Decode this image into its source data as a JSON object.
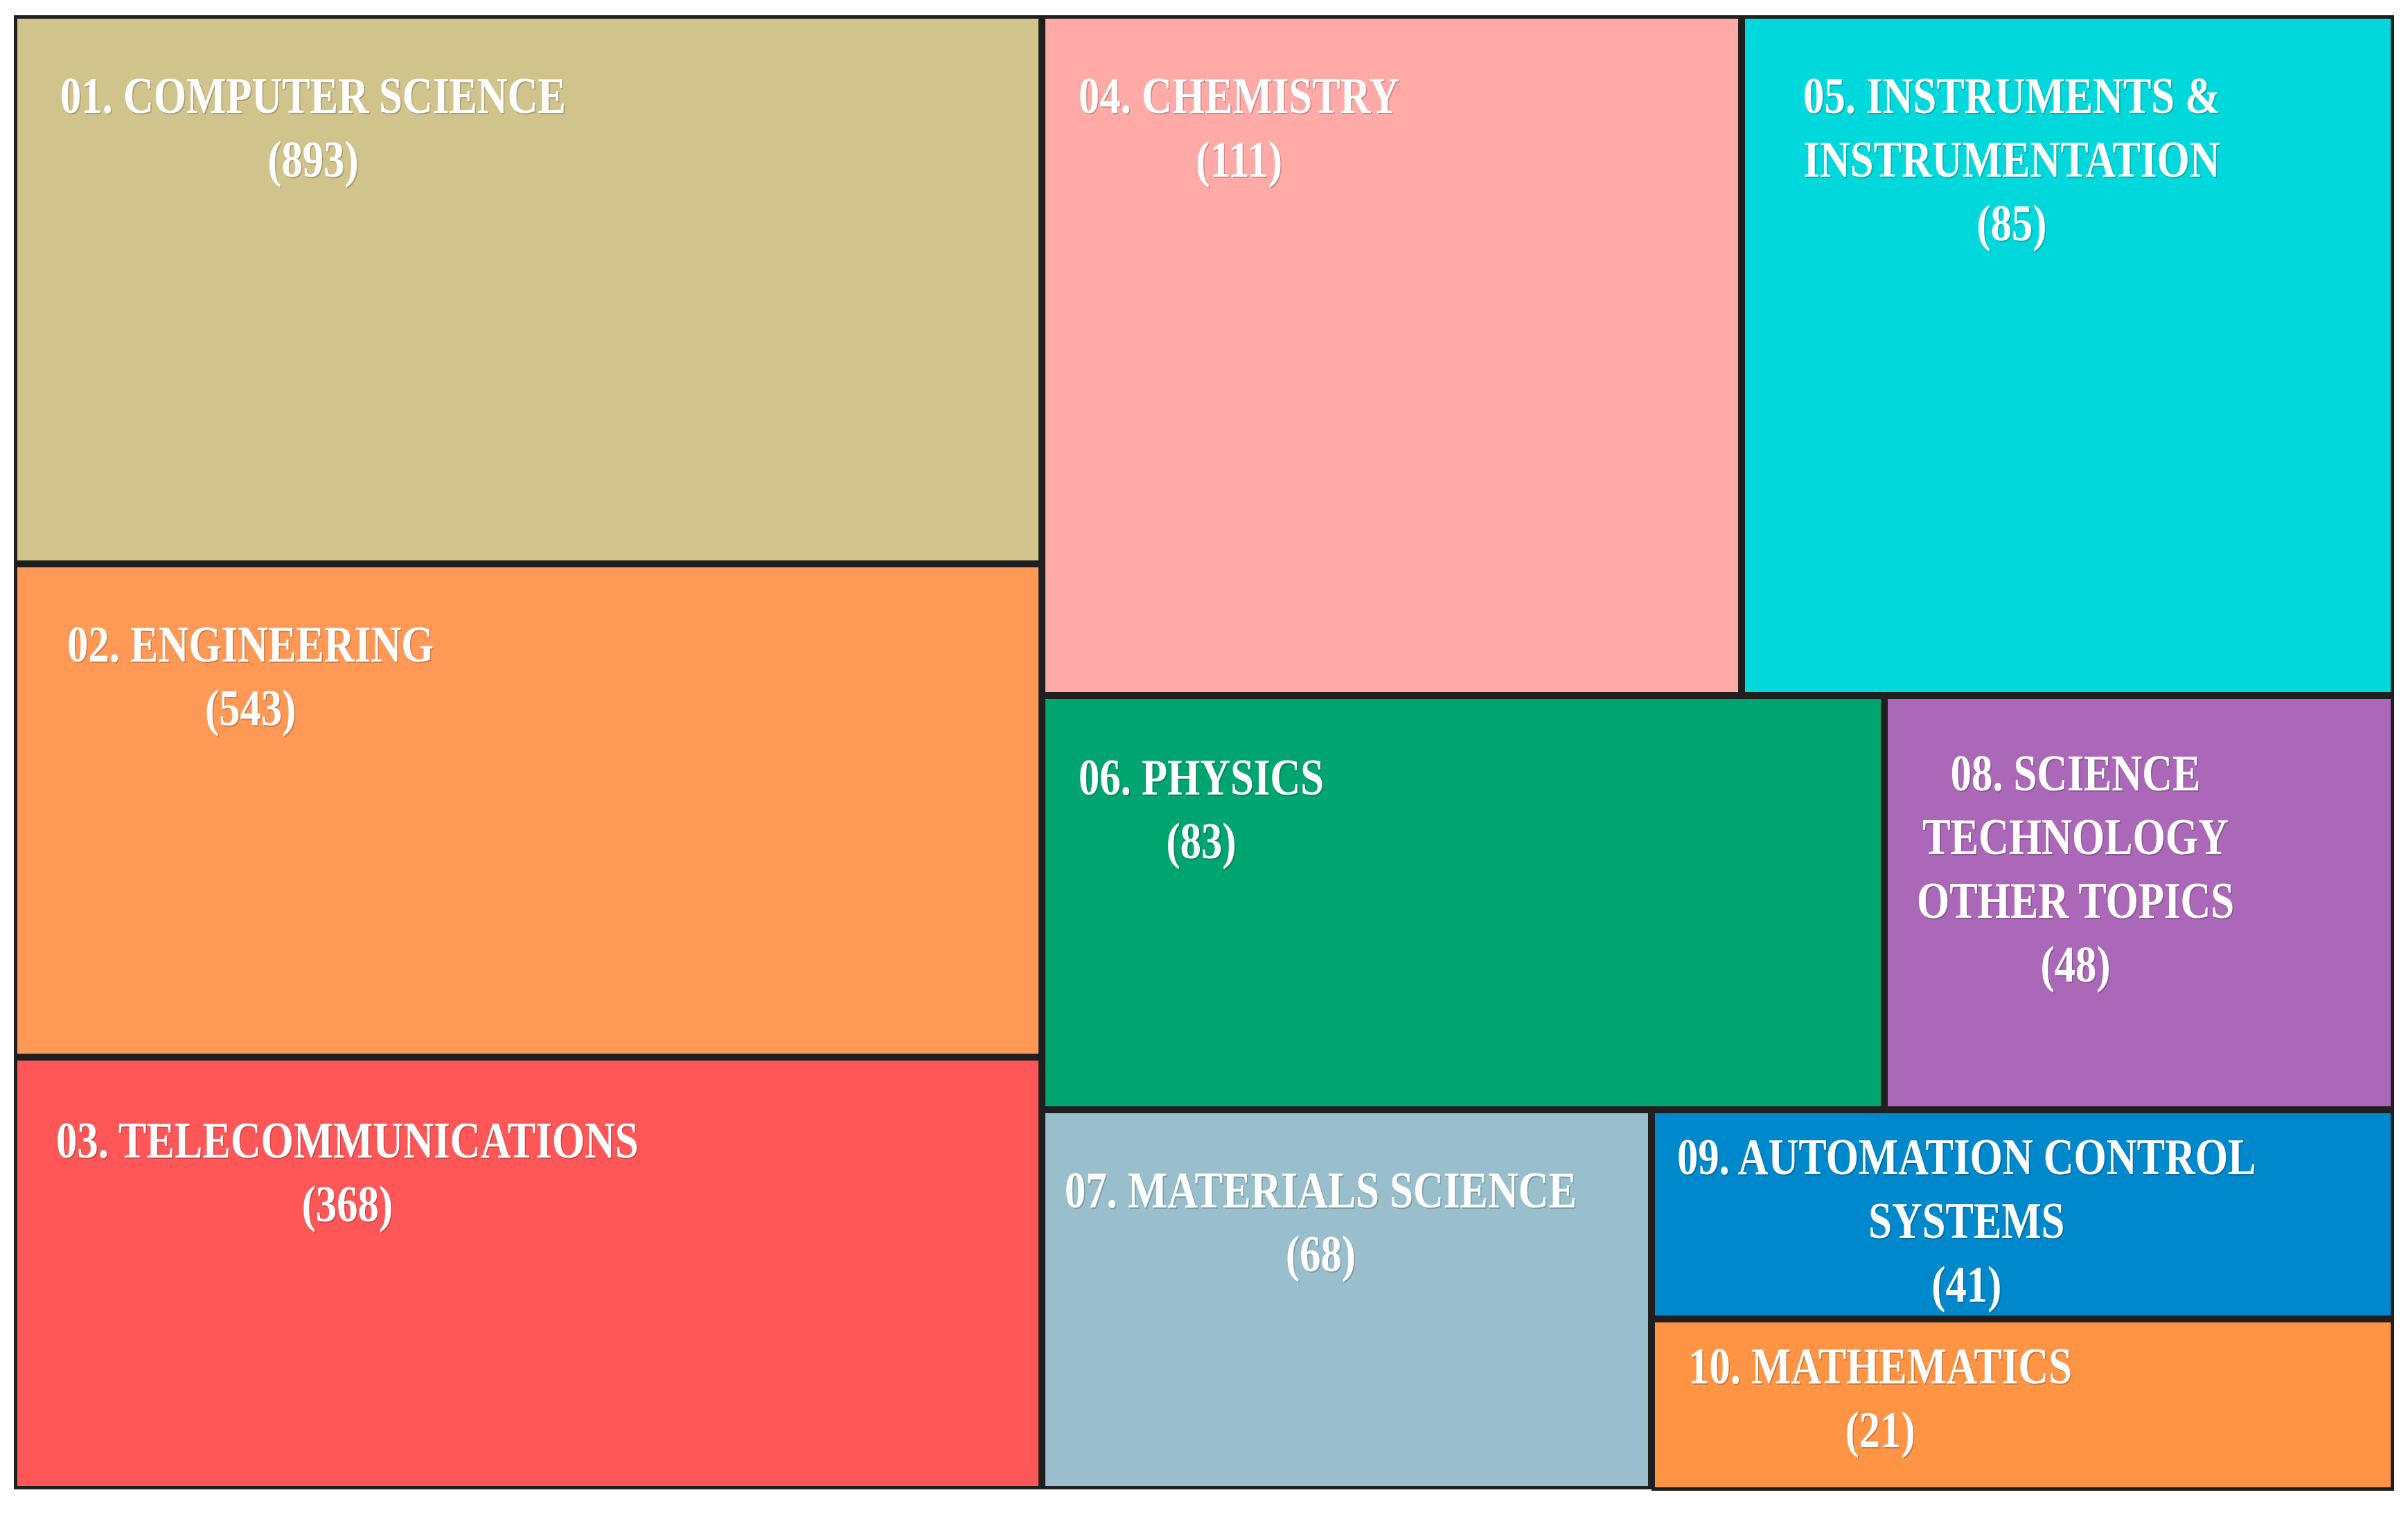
{
  "chart_data": {
    "type": "treemap",
    "title": "",
    "items": [
      {
        "name": "01. COMPUTER SCIENCE",
        "value": 893,
        "value_label": "(893)",
        "color": "#d0c48c"
      },
      {
        "name": "02. ENGINEERING",
        "value": 543,
        "value_label": "(543)",
        "color": "#ff9955"
      },
      {
        "name": "03. TELECOMMUNICATIONS",
        "value": 368,
        "value_label": "(368)",
        "color": "#ff5757"
      },
      {
        "name": "04. CHEMISTRY",
        "value": 111,
        "value_label": "(111)",
        "color": "#ffaaa6"
      },
      {
        "name": "05. INSTRUMENTS & INSTRUMENTATION",
        "lines": [
          "05. INSTRUMENTS &",
          "INSTRUMENTATION"
        ],
        "value": 85,
        "value_label": "(85)",
        "color": "#00d8dc"
      },
      {
        "name": "06. PHYSICS",
        "value": 83,
        "value_label": "(83)",
        "color": "#00a46e"
      },
      {
        "name": "07. MATERIALS SCIENCE",
        "value": 68,
        "value_label": "(68)",
        "color": "#99bfcc"
      },
      {
        "name": "08. SCIENCE TECHNOLOGY OTHER TOPICS",
        "lines": [
          "08. SCIENCE",
          "TECHNOLOGY",
          "OTHER TOPICS"
        ],
        "value": 48,
        "value_label": "(48)",
        "color": "#ac68b8"
      },
      {
        "name": "09. AUTOMATION CONTROL SYSTEMS",
        "lines": [
          "09. AUTOMATION CONTROL",
          "SYSTEMS"
        ],
        "value": 41,
        "value_label": "(41)",
        "color": "#0088cc"
      },
      {
        "name": "10. MATHEMATICS",
        "value": 21,
        "value_label": "(21)",
        "color": "#ff9445"
      }
    ]
  }
}
